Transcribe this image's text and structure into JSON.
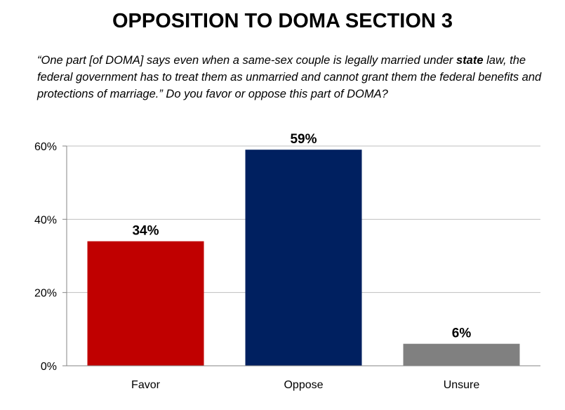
{
  "header": {
    "title": "OPPOSITION TO DOMA SECTION 3"
  },
  "question": {
    "part1": "“One part [of DOMA] says even when a same-sex couple is legally married under ",
    "emphasis": "state",
    "part2": " law, the federal government has to treat them as unmarried and cannot grant them the federal benefits and protections of marriage.”  Do you favor or oppose this part of DOMA?"
  },
  "chart_data": {
    "type": "bar",
    "title": "OPPOSITION TO DOMA SECTION 3",
    "xlabel": "",
    "ylabel": "",
    "categories": [
      "Favor",
      "Oppose",
      "Unsure"
    ],
    "values": [
      34,
      59,
      6
    ],
    "data_labels": [
      "34%",
      "59%",
      "6%"
    ],
    "bar_colors": [
      "#c00000",
      "#002060",
      "#808080"
    ],
    "ylim": [
      0,
      60
    ],
    "yticks": [
      0,
      20,
      40,
      60
    ],
    "ytick_labels": [
      "0%",
      "20%",
      "40%",
      "60%"
    ],
    "grid": true,
    "legend": "none"
  }
}
